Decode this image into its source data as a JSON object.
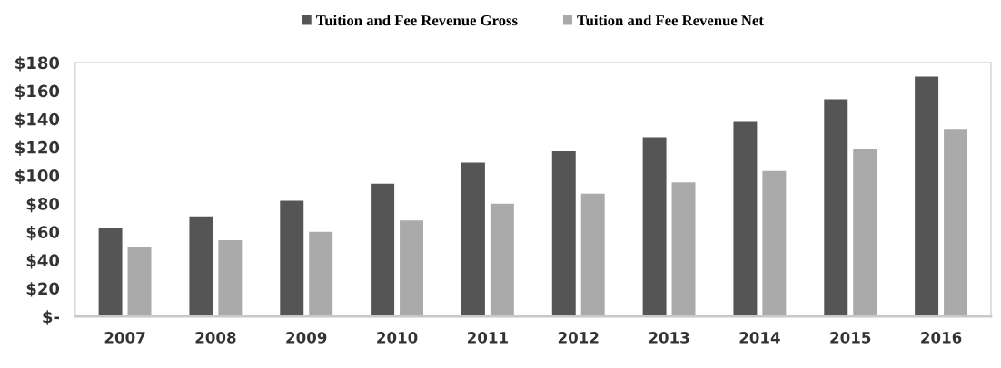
{
  "chart_data": {
    "type": "bar",
    "categories": [
      "2007",
      "2008",
      "2009",
      "2010",
      "2011",
      "2012",
      "2013",
      "2014",
      "2015",
      "2016"
    ],
    "series": [
      {
        "name": "Tuition and Fee Revenue Gross",
        "color": "#555555",
        "values": [
          63,
          71,
          82,
          94,
          109,
          117,
          127,
          138,
          154,
          170
        ]
      },
      {
        "name": "Tuition and Fee Revenue Net",
        "color": "#aaaaaa",
        "values": [
          49,
          54,
          60,
          68,
          80,
          87,
          95,
          103,
          119,
          133
        ]
      }
    ],
    "ylim": [
      0,
      180
    ],
    "yticks": [
      {
        "value": 0,
        "label": "$-"
      },
      {
        "value": 20,
        "label": "$20"
      },
      {
        "value": 40,
        "label": "$40"
      },
      {
        "value": 60,
        "label": "$60"
      },
      {
        "value": 80,
        "label": "$80"
      },
      {
        "value": 100,
        "label": "$100"
      },
      {
        "value": 120,
        "label": "$120"
      },
      {
        "value": 140,
        "label": "$140"
      },
      {
        "value": 160,
        "label": "$160"
      },
      {
        "value": 180,
        "label": "$180"
      }
    ],
    "grid": false,
    "legend": "top"
  }
}
